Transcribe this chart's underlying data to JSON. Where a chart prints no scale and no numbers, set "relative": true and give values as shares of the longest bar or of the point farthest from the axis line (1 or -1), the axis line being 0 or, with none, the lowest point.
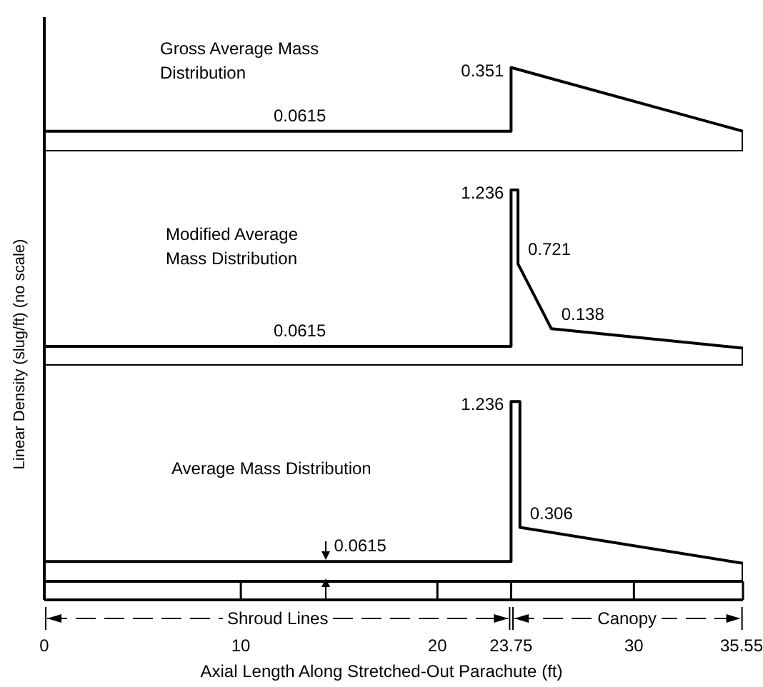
{
  "chart_data": [
    {
      "type": "line",
      "title": "Gross Average Mass Distribution",
      "relative": true,
      "xlim": [
        0,
        35.55
      ],
      "tick_labels": false,
      "marker": "none",
      "series": [
        {
          "color": "#000000",
          "x": [
            0,
            23.75,
            23.75,
            35.55,
            35.55
          ],
          "values": [
            0.24,
            0.24,
            1,
            0.24,
            0
          ]
        }
      ],
      "annotations": [
        {
          "text": "0.0615",
          "x": 13,
          "y": 0.24
        },
        {
          "text": "0.351",
          "x": 23.75,
          "y": 1
        }
      ]
    },
    {
      "type": "line",
      "title": "Modified Average Mass Distribution",
      "ylabel": "Linear Density (slug/ft) (no scale)",
      "relative": true,
      "xlim": [
        0,
        35.55
      ],
      "tick_labels": false,
      "marker": "none",
      "series": [
        {
          "color": "#000000",
          "x": [
            0,
            23.75,
            23.75,
            24.1,
            24.1,
            25.8,
            35.55,
            35.55
          ],
          "values": [
            0.11,
            0.11,
            1,
            1,
            0.58,
            0.21,
            0.1,
            0
          ]
        }
      ],
      "annotations": [
        {
          "text": "0.0615",
          "x": 13,
          "y": 0.11
        },
        {
          "text": "1.236",
          "x": 23.75,
          "y": 1
        },
        {
          "text": "0.721",
          "x": 24.1,
          "y": 0.58
        },
        {
          "text": "0.138",
          "x": 25.8,
          "y": 0.21
        }
      ]
    },
    {
      "type": "line",
      "title": "Average Mass Distribution",
      "xlabel": "Axial Length Along Stretched-Out Parachute (ft)",
      "relative": true,
      "xlim": [
        0,
        35.55
      ],
      "xticks": [
        0,
        10,
        20,
        23.75,
        30,
        35.55
      ],
      "tick_labels": "x",
      "marker": "none",
      "series": [
        {
          "color": "#000000",
          "x": [
            0,
            23.75,
            23.75,
            24.2,
            24.2,
            35.55,
            35.55
          ],
          "values": [
            0.11,
            0.11,
            1,
            1,
            0.3,
            0.1,
            0
          ]
        }
      ],
      "annotations": [
        {
          "text": "0.0615",
          "x": 14.3,
          "y": 0.11
        },
        {
          "text": "1.236",
          "x": 23.75,
          "y": 1
        },
        {
          "text": "0.306",
          "x": 24.2,
          "y": 0.3
        },
        "Shroud Lines",
        "Canopy"
      ]
    }
  ]
}
